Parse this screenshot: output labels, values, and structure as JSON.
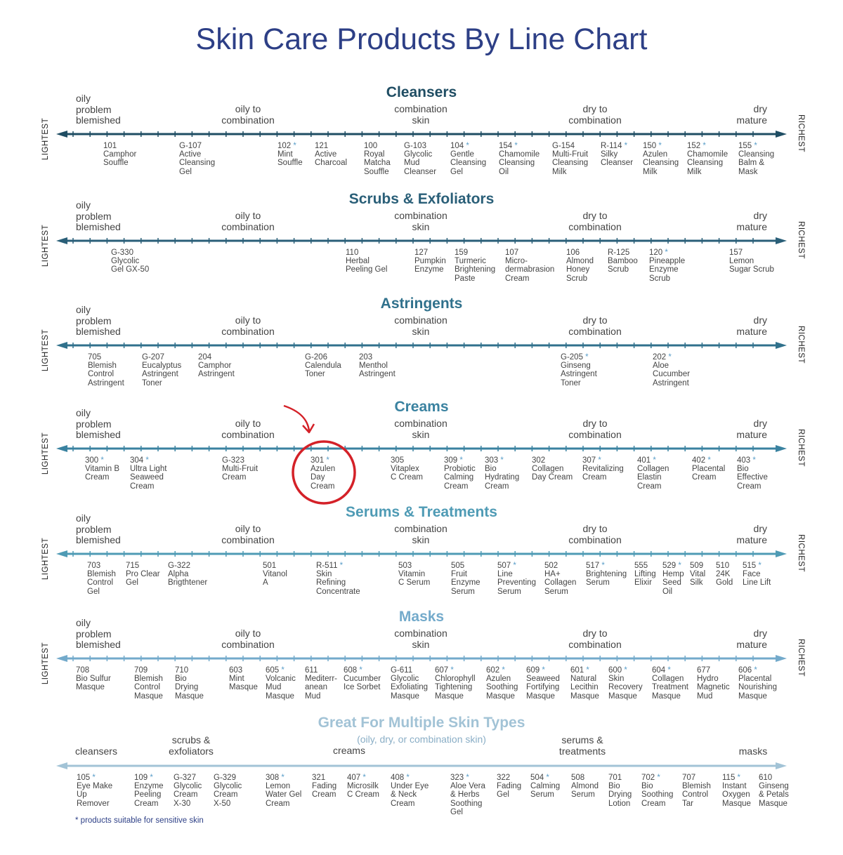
{
  "title": "Skin Care Products By Line Chart",
  "end_labels": {
    "left": "LIGHTEST",
    "right": "RICHEST"
  },
  "footnote": "* products suitable for sensitive skin",
  "skin_types": {
    "oily": "oily\nproblem\nblemished",
    "oily_combo": "oily to\ncombination",
    "combo": "combination\nskin",
    "dry_combo": "dry to\ncombination",
    "dry": "dry\nmature"
  },
  "colors": {
    "title": "#2d3f86",
    "cleansers": "#1f4d63",
    "scrubs": "#2a5f78",
    "astringents": "#30718c",
    "creams": "#3a82a0",
    "serums": "#4f9bb5",
    "masks": "#73aacb",
    "multiple": "#a2c3d6",
    "star": "#5a9ec9",
    "highlight": "#d42128"
  },
  "sections": [
    {
      "key": "cleansers",
      "title": "Cleansers",
      "products": [
        {
          "code": "101",
          "name": "Camphor\nSouffle",
          "star": false
        },
        {
          "code": "G-107",
          "name": "Active\nCleansing\nGel",
          "star": false
        },
        {
          "code": "102",
          "name": "Mint\nSouffle",
          "star": true
        },
        {
          "code": "121",
          "name": "Active\nCharcoal",
          "star": false
        },
        {
          "code": "100",
          "name": "Royal\nMatcha\nSouffle",
          "star": false
        },
        {
          "code": "G-103",
          "name": "Glycolic\nMud\nCleanser",
          "star": false
        },
        {
          "code": "104",
          "name": "Gentle\nCleansing\nGel",
          "star": true
        },
        {
          "code": "154",
          "name": "Chamomile\nCleansing\nOil",
          "star": true
        },
        {
          "code": "G-154",
          "name": "Multi-Fruit\nCleansing\nMilk",
          "star": false
        },
        {
          "code": "R-114",
          "name": "Silky\nCleanser",
          "star": true
        },
        {
          "code": "150",
          "name": "Azulen\nCleansing\nMilk",
          "star": true
        },
        {
          "code": "152",
          "name": "Chamomile\nCleansing\nMilk",
          "star": true
        },
        {
          "code": "155",
          "name": "Cleansing\nBalm &\nMask",
          "star": true
        }
      ]
    },
    {
      "key": "scrubs",
      "title": "Scrubs & Exfoliators",
      "products": [
        {
          "code": "G-330",
          "name": "Glycolic\nGel GX-50",
          "star": false
        },
        {
          "code": "110",
          "name": "Herbal\nPeeling Gel",
          "star": false
        },
        {
          "code": "127",
          "name": "Pumpkin\nEnzyme",
          "star": false
        },
        {
          "code": "159",
          "name": "Turmeric\nBrightening\nPaste",
          "star": false
        },
        {
          "code": "107",
          "name": "Micro-\ndermabrasion\nCream",
          "star": false
        },
        {
          "code": "106",
          "name": "Almond\nHoney\nScrub",
          "star": false
        },
        {
          "code": "R-125",
          "name": "Bamboo\nScrub",
          "star": false
        },
        {
          "code": "120",
          "name": "Pineapple\nEnzyme\nScrub",
          "star": true
        },
        {
          "code": "157",
          "name": "Lemon\nSugar Scrub",
          "star": false
        }
      ]
    },
    {
      "key": "astringents",
      "title": "Astringents",
      "products": [
        {
          "code": "705",
          "name": "Blemish\nControl\nAstringent",
          "star": false
        },
        {
          "code": "G-207",
          "name": "Eucalyptus\nAstringent\nToner",
          "star": false
        },
        {
          "code": "204",
          "name": "Camphor\nAstringent",
          "star": false
        },
        {
          "code": "G-206",
          "name": "Calendula\nToner",
          "star": false
        },
        {
          "code": "203",
          "name": "Menthol\nAstringent",
          "star": false
        },
        {
          "code": "G-205",
          "name": "Ginseng\nAstringent\nToner",
          "star": true
        },
        {
          "code": "202",
          "name": "Aloe\nCucumber\nAstringent",
          "star": true
        }
      ]
    },
    {
      "key": "creams",
      "title": "Creams",
      "products": [
        {
          "code": "300",
          "name": "Vitamin B\nCream",
          "star": true
        },
        {
          "code": "304",
          "name": "Ultra Light\nSeaweed\nCream",
          "star": true
        },
        {
          "code": "G-323",
          "name": "Multi-Fruit\nCream",
          "star": false
        },
        {
          "code": "301",
          "name": "Azulen\nDay\nCream",
          "star": true
        },
        {
          "code": "305",
          "name": "Vitaplex\nC Cream",
          "star": false
        },
        {
          "code": "309",
          "name": "Probiotic\nCalming\nCream",
          "star": true
        },
        {
          "code": "303",
          "name": "Bio\nHydrating\nCream",
          "star": true
        },
        {
          "code": "302",
          "name": "Collagen\nDay Cream",
          "star": false
        },
        {
          "code": "307",
          "name": "Revitalizing\nCream",
          "star": true
        },
        {
          "code": "401",
          "name": "Collagen\nElastin\nCream",
          "star": true
        },
        {
          "code": "402",
          "name": "Placental\nCream",
          "star": true
        },
        {
          "code": "403",
          "name": "Bio\nEffective\nCream",
          "star": true
        }
      ]
    },
    {
      "key": "serums",
      "title": "Serums & Treatments",
      "products": [
        {
          "code": "703",
          "name": "Blemish\nControl\nGel",
          "star": false
        },
        {
          "code": "715",
          "name": "Pro Clear\nGel",
          "star": false
        },
        {
          "code": "G-322",
          "name": "Alpha\nBrigthtener",
          "star": false
        },
        {
          "code": "501",
          "name": "Vitanol\nA",
          "star": false
        },
        {
          "code": "R-511",
          "name": "Skin\nRefining\nConcentrate",
          "star": true
        },
        {
          "code": "503",
          "name": "Vitamin\nC Serum",
          "star": false
        },
        {
          "code": "505",
          "name": "Fruit\nEnzyme\nSerum",
          "star": false
        },
        {
          "code": "507",
          "name": "Line\nPreventing\nSerum",
          "star": true
        },
        {
          "code": "502",
          "name": "HA+\nCollagen\nSerum",
          "star": false
        },
        {
          "code": "517",
          "name": "Brightening\nSerum",
          "star": true
        },
        {
          "code": "555",
          "name": "Lifting\nElixir",
          "star": false
        },
        {
          "code": "529",
          "name": "Hemp\nSeed\nOil",
          "star": true
        },
        {
          "code": "509",
          "name": "Vital\nSilk",
          "star": false
        },
        {
          "code": "510",
          "name": "24K\nGold",
          "star": false
        },
        {
          "code": "515",
          "name": "Face\nLine Lift",
          "star": true
        }
      ]
    },
    {
      "key": "masks",
      "title": "Masks",
      "products": [
        {
          "code": "708",
          "name": "Bio Sulfur\nMasque",
          "star": false
        },
        {
          "code": "709",
          "name": "Blemish\nControl\nMasque",
          "star": false
        },
        {
          "code": "710",
          "name": "Bio\nDrying\nMasque",
          "star": false
        },
        {
          "code": "603",
          "name": "Mint\nMasque",
          "star": false
        },
        {
          "code": "605",
          "name": "Volcanic\nMud\nMasque",
          "star": true
        },
        {
          "code": "611",
          "name": "Mediterr-\nanean\nMud",
          "star": false
        },
        {
          "code": "608",
          "name": "Cucumber\nIce Sorbet",
          "star": true
        },
        {
          "code": "G-611",
          "name": "Glycolic\nExfoliating\nMasque",
          "star": false
        },
        {
          "code": "607",
          "name": "Chlorophyll\nTightening\nMasque",
          "star": true
        },
        {
          "code": "602",
          "name": "Azulen\nSoothing\nMasque",
          "star": true
        },
        {
          "code": "609",
          "name": "Seaweed\nFortifying\nMasque",
          "star": true
        },
        {
          "code": "601",
          "name": "Natural\nLecithin\nMasque",
          "star": true
        },
        {
          "code": "600",
          "name": "Skin\nRecovery\nMasque",
          "star": true
        },
        {
          "code": "604",
          "name": "Collagen\nTreatment\nMasque",
          "star": true
        },
        {
          "code": "677",
          "name": "Hydro\nMagnetic\nMud",
          "star": false
        },
        {
          "code": "606",
          "name": "Placental\nNourishing\nMasque",
          "star": true
        }
      ]
    }
  ],
  "multiple": {
    "title": "Great For Multiple Skin Types",
    "subtitle": "(oily, dry, or combination skin)",
    "categories": {
      "cleansers": "cleansers",
      "scrubs": "scrubs &\nexfoliators",
      "creams": "creams",
      "serums": "serums &\ntreatments",
      "masks": "masks"
    },
    "products": [
      {
        "code": "105",
        "name": "Eye Make\nUp\nRemover",
        "star": true
      },
      {
        "code": "109",
        "name": "Enzyme\nPeeling\nCream",
        "star": true
      },
      {
        "code": "G-327",
        "name": "Glycolic\nCream\nX-30",
        "star": false
      },
      {
        "code": "G-329",
        "name": "Glycolic\nCream\nX-50",
        "star": false
      },
      {
        "code": "308",
        "name": "Lemon\nWater Gel\nCream",
        "star": true
      },
      {
        "code": "321",
        "name": "Fading\nCream",
        "star": false
      },
      {
        "code": "407",
        "name": "Microsilk\nC Cream",
        "star": true
      },
      {
        "code": "408",
        "name": "Under Eye\n& Neck\nCream",
        "star": true
      },
      {
        "code": "323",
        "name": "Aloe Vera\n& Herbs\nSoothing\nGel",
        "star": true
      },
      {
        "code": "322",
        "name": "Fading\nGel",
        "star": false
      },
      {
        "code": "504",
        "name": "Calming\nSerum",
        "star": true
      },
      {
        "code": "508",
        "name": "Almond\nSerum",
        "star": false
      },
      {
        "code": "701",
        "name": "Bio\nDrying\nLotion",
        "star": false
      },
      {
        "code": "702",
        "name": "Bio\nSoothing\nCream",
        "star": true
      },
      {
        "code": "707",
        "name": "Blemish\nControl\nTar",
        "star": false
      },
      {
        "code": "115",
        "name": "Instant\nOxygen\nMasque",
        "star": true
      },
      {
        "code": "610",
        "name": "Ginseng\n& Petals\nMasque",
        "star": false
      }
    ]
  }
}
